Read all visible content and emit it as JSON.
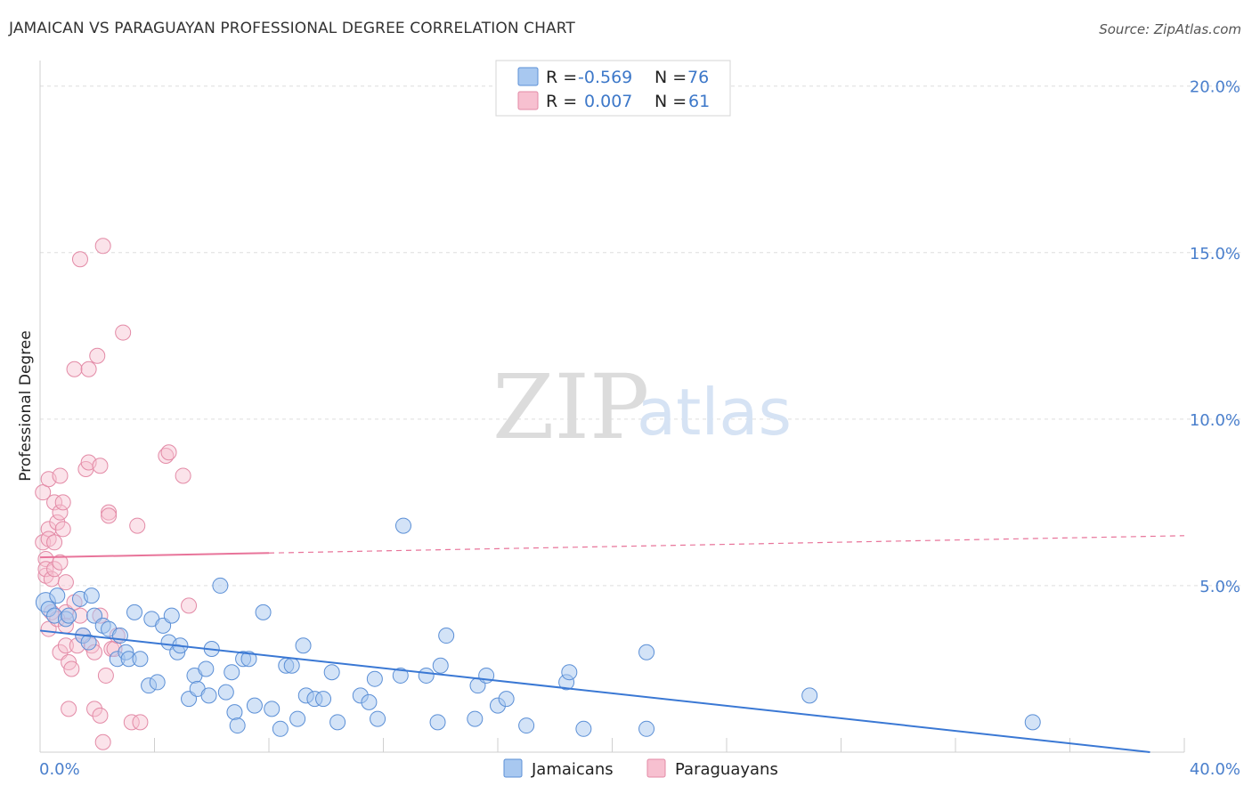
{
  "header": {
    "title": "JAMAICAN VS PARAGUAYAN PROFESSIONAL DEGREE CORRELATION CHART",
    "source": "Source: ZipAtlas.com"
  },
  "watermark": {
    "part1": "ZIP",
    "part2": "atlas"
  },
  "legend_box": {
    "rows": [
      {
        "r_label": "R =",
        "r_value": "-0.569",
        "n_label": "N =",
        "n_value": "76",
        "color": "#a8c8f0",
        "stroke": "#5b8fd6"
      },
      {
        "r_label": "R =",
        "r_value": "0.007",
        "n_label": "N =",
        "n_value": "61",
        "color": "#f7c0d0",
        "stroke": "#e38aa6"
      }
    ]
  },
  "bottom_legend": {
    "items": [
      "Jamaicans",
      "Paraguayans"
    ]
  },
  "chart_data": {
    "type": "scatter",
    "title": "JAMAICAN VS PARAGUAYAN PROFESSIONAL DEGREE CORRELATION CHART",
    "xlabel": "",
    "ylabel": "Professional Degree",
    "xlim": [
      0,
      40
    ],
    "ylim": [
      0,
      20.5
    ],
    "x_tick_labels": [
      "0.0%",
      "40.0%"
    ],
    "y_ticks": [
      5,
      10,
      15,
      20
    ],
    "y_tick_labels": [
      "5.0%",
      "10.0%",
      "15.0%",
      "20.0%"
    ],
    "series": [
      {
        "name": "Jamaicans",
        "color": "#a8c8f0",
        "stroke": "#5b8fd6",
        "trend": {
          "x0": 0,
          "y0": 3.65,
          "x1": 38.8,
          "y1": 0.0,
          "color": "#3a78d4"
        },
        "points": [
          [
            0.2,
            4.5
          ],
          [
            0.3,
            4.3
          ],
          [
            0.5,
            4.1
          ],
          [
            0.6,
            4.7
          ],
          [
            0.9,
            4.0
          ],
          [
            1.0,
            4.1
          ],
          [
            1.4,
            4.6
          ],
          [
            1.5,
            3.5
          ],
          [
            1.7,
            3.3
          ],
          [
            1.8,
            4.7
          ],
          [
            1.9,
            4.1
          ],
          [
            2.2,
            3.8
          ],
          [
            2.4,
            3.7
          ],
          [
            2.7,
            2.8
          ],
          [
            2.8,
            3.5
          ],
          [
            3.0,
            3.0
          ],
          [
            3.1,
            2.8
          ],
          [
            3.3,
            4.2
          ],
          [
            3.5,
            2.8
          ],
          [
            3.8,
            2.0
          ],
          [
            3.9,
            4.0
          ],
          [
            4.1,
            2.1
          ],
          [
            4.3,
            3.8
          ],
          [
            4.5,
            3.3
          ],
          [
            4.6,
            4.1
          ],
          [
            4.8,
            3.0
          ],
          [
            4.9,
            3.2
          ],
          [
            5.2,
            1.6
          ],
          [
            5.4,
            2.3
          ],
          [
            5.5,
            1.9
          ],
          [
            5.8,
            2.5
          ],
          [
            5.9,
            1.7
          ],
          [
            6.0,
            3.1
          ],
          [
            6.3,
            5.0
          ],
          [
            6.5,
            1.8
          ],
          [
            6.7,
            2.4
          ],
          [
            6.8,
            1.2
          ],
          [
            6.9,
            0.8
          ],
          [
            7.1,
            2.8
          ],
          [
            7.3,
            2.8
          ],
          [
            7.5,
            1.4
          ],
          [
            7.8,
            4.2
          ],
          [
            8.1,
            1.3
          ],
          [
            8.4,
            0.7
          ],
          [
            8.6,
            2.6
          ],
          [
            8.8,
            2.6
          ],
          [
            9.0,
            1.0
          ],
          [
            9.2,
            3.2
          ],
          [
            9.3,
            1.7
          ],
          [
            9.6,
            1.6
          ],
          [
            9.9,
            1.6
          ],
          [
            10.2,
            2.4
          ],
          [
            10.4,
            0.9
          ],
          [
            11.2,
            1.7
          ],
          [
            11.5,
            1.5
          ],
          [
            11.7,
            2.2
          ],
          [
            11.8,
            1.0
          ],
          [
            12.6,
            2.3
          ],
          [
            13.5,
            2.3
          ],
          [
            13.9,
            0.9
          ],
          [
            14.0,
            2.6
          ],
          [
            14.2,
            3.5
          ],
          [
            15.2,
            1.0
          ],
          [
            15.3,
            2.0
          ],
          [
            15.6,
            2.3
          ],
          [
            16.0,
            1.4
          ],
          [
            16.3,
            1.6
          ],
          [
            17.0,
            0.8
          ],
          [
            18.4,
            2.1
          ],
          [
            18.5,
            2.4
          ],
          [
            19.0,
            0.7
          ],
          [
            21.2,
            3.0
          ],
          [
            21.2,
            0.7
          ],
          [
            26.9,
            1.7
          ],
          [
            34.7,
            0.9
          ],
          [
            12.7,
            6.8
          ]
        ]
      },
      {
        "name": "Paraguayans",
        "color": "#f7c0d0",
        "stroke": "#e38aa6",
        "trend": {
          "x0": 0,
          "y0": 5.85,
          "x1": 40,
          "y1": 6.5,
          "solid_until": 8.0,
          "color": "#e8749a"
        },
        "points": [
          [
            0.1,
            7.8
          ],
          [
            0.1,
            6.3
          ],
          [
            0.2,
            5.8
          ],
          [
            0.2,
            5.3
          ],
          [
            0.2,
            5.5
          ],
          [
            0.3,
            6.7
          ],
          [
            0.3,
            6.4
          ],
          [
            0.3,
            8.2
          ],
          [
            0.4,
            5.2
          ],
          [
            0.4,
            4.2
          ],
          [
            0.5,
            7.5
          ],
          [
            0.5,
            6.3
          ],
          [
            0.5,
            5.5
          ],
          [
            0.6,
            6.9
          ],
          [
            0.7,
            7.2
          ],
          [
            0.7,
            5.7
          ],
          [
            0.7,
            8.3
          ],
          [
            0.7,
            3.0
          ],
          [
            0.8,
            7.5
          ],
          [
            0.8,
            6.7
          ],
          [
            0.9,
            5.1
          ],
          [
            0.9,
            4.2
          ],
          [
            0.9,
            3.2
          ],
          [
            1.0,
            2.7
          ],
          [
            1.0,
            1.3
          ],
          [
            1.1,
            2.5
          ],
          [
            1.2,
            11.5
          ],
          [
            1.3,
            3.2
          ],
          [
            1.4,
            14.8
          ],
          [
            1.4,
            4.1
          ],
          [
            1.5,
            3.5
          ],
          [
            1.6,
            8.5
          ],
          [
            1.7,
            11.5
          ],
          [
            1.7,
            8.7
          ],
          [
            1.8,
            3.2
          ],
          [
            1.9,
            3.0
          ],
          [
            1.9,
            1.3
          ],
          [
            2.0,
            11.9
          ],
          [
            2.1,
            1.1
          ],
          [
            2.1,
            8.6
          ],
          [
            2.1,
            4.1
          ],
          [
            2.2,
            15.2
          ],
          [
            2.2,
            0.3
          ],
          [
            2.3,
            2.3
          ],
          [
            2.4,
            7.2
          ],
          [
            2.4,
            7.1
          ],
          [
            2.5,
            3.1
          ],
          [
            2.6,
            3.1
          ],
          [
            2.7,
            3.5
          ],
          [
            2.9,
            12.6
          ],
          [
            3.2,
            0.9
          ],
          [
            3.4,
            6.8
          ],
          [
            3.5,
            0.9
          ],
          [
            4.4,
            8.9
          ],
          [
            4.5,
            9.0
          ],
          [
            5.0,
            8.3
          ],
          [
            5.2,
            4.4
          ],
          [
            0.3,
            3.7
          ],
          [
            0.6,
            4.0
          ],
          [
            1.2,
            4.5
          ],
          [
            0.9,
            3.8
          ]
        ]
      }
    ]
  }
}
